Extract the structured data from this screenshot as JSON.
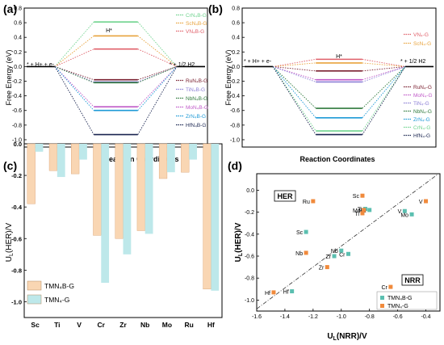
{
  "panels": [
    {
      "letter": "(a)"
    },
    {
      "letter": "(b)"
    },
    {
      "letter": "(c)"
    },
    {
      "letter": "(d)"
    }
  ],
  "chart_data": [
    {
      "panel": "(a)",
      "type": "line",
      "ylabel": "Free Energy (eV)",
      "xlabel": "Reaction Coordinates",
      "ylim": [
        -1.1,
        0.8
      ],
      "yticks": [
        "0.8",
        "0.6",
        "0.4",
        "0.2",
        "0.0",
        "-0.2",
        "-0.4",
        "-0.6",
        "-0.8",
        "-1.0"
      ],
      "yticks_values": [
        0.8,
        0.6,
        0.4,
        0.2,
        0.0,
        -0.2,
        -0.4,
        -0.6,
        -0.8,
        -1.0
      ],
      "state_labels": [
        "* + H+ + e-",
        "H*",
        "* + 1/2 H2"
      ],
      "series": [
        {
          "name": "CrN4B-G",
          "value": 0.61,
          "color": "#6fd38e"
        },
        {
          "name": "ScN4B-G",
          "value": 0.42,
          "color": "#e8a33c"
        },
        {
          "name": "VN4B-G",
          "value": 0.24,
          "color": "#e0606a"
        },
        {
          "name": "RuN4B-G",
          "value": -0.18,
          "color": "#7a2030"
        },
        {
          "name": "TiN4B-G",
          "value": -0.21,
          "color": "#8c7fd6"
        },
        {
          "name": "NbN4B-G",
          "value": -0.22,
          "color": "#2f7a3c"
        },
        {
          "name": "MoN4B-G",
          "value": -0.55,
          "color": "#c05ac8"
        },
        {
          "name": "ZrN4B-G",
          "value": -0.6,
          "color": "#1e9ad6"
        },
        {
          "name": "HfN4B-G",
          "value": -0.93,
          "color": "#1a2550"
        }
      ],
      "legend_top": [
        "CrN4B-G",
        "ScN4B-G",
        "VN4B-G"
      ],
      "legend_bottom": [
        "RuN4B-G",
        "TiN4B-G",
        "NbN4B-G",
        "MoN4B-G",
        "ZrN4B-G",
        "HfN4B-G"
      ],
      "legend_top_display": [
        "CrN₄B-G",
        "ScN₄B-G",
        "VN₄B-G"
      ],
      "legend_bottom_display": [
        "RuN₄B-G",
        "TiN₄B-G",
        "NbN₄B-G",
        "MoN₄B-G",
        "ZrN₄B-G",
        "HfN₄B-G"
      ]
    },
    {
      "panel": "(b)",
      "type": "line",
      "ylabel": "Free Energy (eV)",
      "xlabel": "Reaction Coordinates",
      "ylim": [
        -1.1,
        0.8
      ],
      "yticks": [
        "0.8",
        "0.6",
        "0.4",
        "0.2",
        "0.0",
        "-0.2",
        "-0.4",
        "-0.6",
        "-0.8",
        "-1.0"
      ],
      "yticks_values": [
        0.8,
        0.6,
        0.4,
        0.2,
        0.0,
        -0.2,
        -0.4,
        -0.6,
        -0.8,
        -1.0
      ],
      "state_labels": [
        "* + H+ + e-",
        "H*",
        "* + 1/2 H2"
      ],
      "series": [
        {
          "name": "VN4-G",
          "value": 0.1,
          "color": "#e0606a"
        },
        {
          "name": "ScN4-G",
          "value": 0.05,
          "color": "#e8a33c"
        },
        {
          "name": "RuN4-G",
          "value": -0.06,
          "color": "#7a2030"
        },
        {
          "name": "MoN4-G",
          "value": -0.18,
          "color": "#c05ac8"
        },
        {
          "name": "TiN4-G",
          "value": -0.21,
          "color": "#8c7fd6"
        },
        {
          "name": "NbN4-G",
          "value": -0.57,
          "color": "#2f7a3c"
        },
        {
          "name": "ZrN4-G",
          "value": -0.7,
          "color": "#1e9ad6"
        },
        {
          "name": "CrN4-G",
          "value": -0.88,
          "color": "#6fd38e"
        },
        {
          "name": "HfN4-G",
          "value": -0.93,
          "color": "#1a2550"
        }
      ],
      "legend_top": [
        "VN4-G",
        "ScN4-G"
      ],
      "legend_bottom": [
        "RuN4-G",
        "MoN4-G",
        "TiN4-G",
        "NbN4-G",
        "ZrN4-G",
        "CrN4-G",
        "HfN4-G"
      ],
      "legend_top_display": [
        "VN₄-G",
        "ScN₄-G"
      ],
      "legend_bottom_display": [
        "RuN₄-G",
        "MoN₄-G",
        "TiN₄-G",
        "NbN₄-G",
        "ZrN₄-G",
        "CrN₄-G",
        "HfN₄-G"
      ]
    },
    {
      "panel": "(c)",
      "type": "bar",
      "ylabel": "UL(HER)/V",
      "categories": [
        "Sc",
        "Ti",
        "V",
        "Cr",
        "Zr",
        "Nb",
        "Mo",
        "Ru",
        "Hf"
      ],
      "ylim": [
        -1.1,
        0.0
      ],
      "yticks": [
        "0.0",
        "-0.2",
        "-0.4",
        "-0.6",
        "-0.8",
        "-1.0"
      ],
      "yticks_values": [
        0.0,
        -0.2,
        -0.4,
        -0.6,
        -0.8,
        -1.0
      ],
      "series": [
        {
          "name": "TMN4B-G",
          "display": "TMN₄B-G",
          "color": "#f9d6b3",
          "values": [
            -0.38,
            -0.17,
            -0.19,
            -0.58,
            -0.6,
            -0.55,
            -0.22,
            -0.18,
            -0.92
          ]
        },
        {
          "name": "TMN4-G",
          "display": "TMN₄-G",
          "color": "#bde8ea",
          "values": [
            -0.05,
            -0.21,
            -0.1,
            -0.88,
            -0.7,
            -0.57,
            -0.18,
            -0.1,
            -0.93
          ]
        }
      ],
      "legend": "bottom-left"
    },
    {
      "panel": "(d)",
      "type": "scatter",
      "xlabel": "UL(NRR)/V",
      "ylabel": "UL(HER)/V",
      "xlim": [
        -1.6,
        -0.3
      ],
      "ylim": [
        -1.1,
        0.15
      ],
      "xticks": [
        "-1.6",
        "-1.4",
        "-1.2",
        "-1.0",
        "-0.8",
        "-0.6",
        "-0.4"
      ],
      "xticks_values": [
        -1.6,
        -1.4,
        -1.2,
        -1.0,
        -0.8,
        -0.6,
        -0.4
      ],
      "yticks": [
        "0.0",
        "-0.2",
        "-0.4",
        "-0.6",
        "-0.8",
        "-1.0"
      ],
      "yticks_values": [
        0.0,
        -0.2,
        -0.4,
        -0.6,
        -0.8,
        -1.0
      ],
      "region_labels": [
        "HER",
        "NRR"
      ],
      "series": [
        {
          "name": "TMN4B-G",
          "display": "TMN₄B-G",
          "color": "#5bbfb0",
          "points": [
            {
              "label": "Sc",
              "x": -1.25,
              "y": -0.38
            },
            {
              "label": "Ti",
              "x": -0.83,
              "y": -0.17
            },
            {
              "label": "V",
              "x": -0.55,
              "y": -0.19
            },
            {
              "label": "Mo",
              "x": -0.5,
              "y": -0.22
            },
            {
              "label": "Cr",
              "x": -0.95,
              "y": -0.58
            },
            {
              "label": "Zr",
              "x": -1.05,
              "y": -0.6
            },
            {
              "label": "Nb",
              "x": -1.0,
              "y": -0.55
            },
            {
              "label": "Ru",
              "x": -0.8,
              "y": -0.18
            },
            {
              "label": "Hf",
              "x": -1.35,
              "y": -0.92
            }
          ]
        },
        {
          "name": "TMN4-G",
          "display": "TMN₄-G",
          "color": "#f08a3c",
          "points": [
            {
              "label": "Sc",
              "x": -0.85,
              "y": -0.05
            },
            {
              "label": "Ru",
              "x": -1.2,
              "y": -0.1
            },
            {
              "label": "Mo",
              "x": -0.84,
              "y": -0.18
            },
            {
              "label": "Ti",
              "x": -0.85,
              "y": -0.21
            },
            {
              "label": "V",
              "x": -0.4,
              "y": -0.1
            },
            {
              "label": "Nb",
              "x": -1.25,
              "y": -0.57
            },
            {
              "label": "Zr",
              "x": -1.1,
              "y": -0.7
            },
            {
              "label": "Cr",
              "x": -0.65,
              "y": -0.88
            },
            {
              "label": "Hf",
              "x": -1.48,
              "y": -0.93
            }
          ]
        }
      ],
      "diagonal": true,
      "legend": "bottom-right"
    }
  ]
}
